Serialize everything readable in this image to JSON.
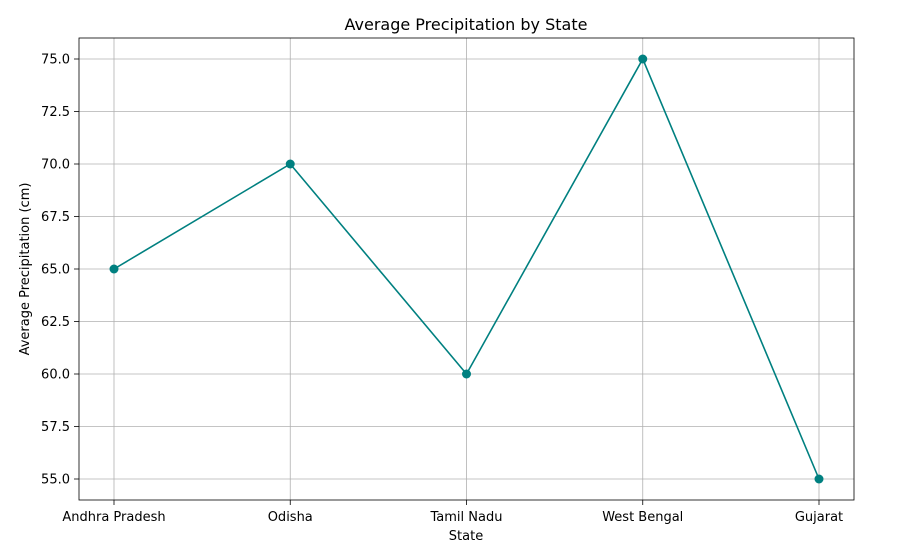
{
  "chart_data": {
    "type": "line",
    "title": "Average Precipitation by State",
    "xlabel": "State",
    "ylabel": "Average Precipitation (cm)",
    "categories": [
      "Andhra Pradesh",
      "Odisha",
      "Tamil Nadu",
      "West Bengal",
      "Gujarat"
    ],
    "series": [
      {
        "values": [
          65,
          70,
          60,
          75,
          55
        ],
        "color": "#008080",
        "marker": "circle"
      }
    ],
    "ylim": [
      54,
      76
    ],
    "yticks": [
      55.0,
      57.5,
      60.0,
      62.5,
      65.0,
      67.5,
      70.0,
      72.5,
      75.0
    ],
    "ytick_labels": [
      "55.0",
      "57.5",
      "60.0",
      "62.5",
      "65.0",
      "67.5",
      "70.0",
      "72.5",
      "75.0"
    ],
    "grid": true,
    "legend": false
  }
}
